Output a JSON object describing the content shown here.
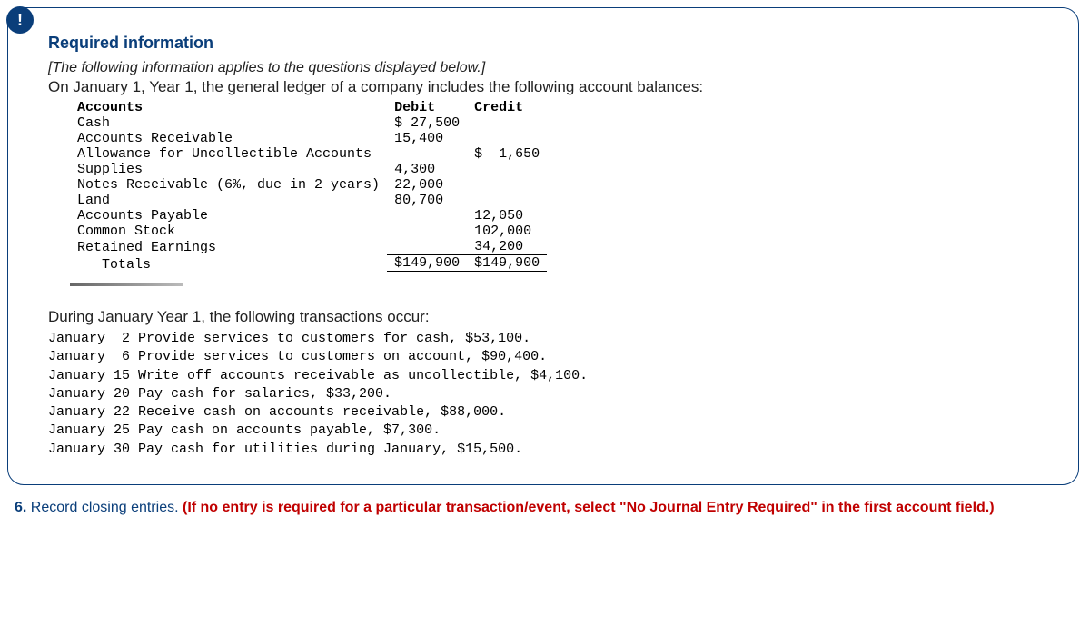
{
  "badge": "!",
  "title": "Required information",
  "italic_note": "[The following information applies to the questions displayed below.]",
  "lead": "On January 1, Year 1, the general ledger of a company includes the following account balances:",
  "ledger": {
    "headers": {
      "c0": "Accounts",
      "c1": "Debit",
      "c2": "Credit"
    },
    "rows": [
      {
        "acct": "Cash",
        "debit": "$ 27,500",
        "credit": ""
      },
      {
        "acct": "Accounts Receivable",
        "debit": "15,400",
        "credit": ""
      },
      {
        "acct": "Allowance for Uncollectible Accounts",
        "debit": "",
        "credit": "$  1,650"
      },
      {
        "acct": "Supplies",
        "debit": "4,300",
        "credit": ""
      },
      {
        "acct": "Notes Receivable (6%, due in 2 years)",
        "debit": "22,000",
        "credit": ""
      },
      {
        "acct": "Land",
        "debit": "80,700",
        "credit": ""
      },
      {
        "acct": "Accounts Payable",
        "debit": "",
        "credit": "12,050"
      },
      {
        "acct": "Common Stock",
        "debit": "",
        "credit": "102,000"
      },
      {
        "acct": "Retained Earnings",
        "debit": "",
        "credit": "34,200"
      }
    ],
    "totals": {
      "label": "   Totals",
      "debit": "$149,900",
      "credit": "$149,900"
    }
  },
  "trans_lead": "During January Year 1, the following transactions occur:",
  "transactions": [
    "January  2 Provide services to customers for cash, $53,100.",
    "January  6 Provide services to customers on account, $90,400.",
    "January 15 Write off accounts receivable as uncollectible, $4,100.",
    "January 20 Pay cash for salaries, $33,200.",
    "January 22 Receive cash on accounts receivable, $88,000.",
    "January 25 Pay cash on accounts payable, $7,300.",
    "January 30 Pay cash for utilities during January, $15,500."
  ],
  "q6": {
    "num": "6.",
    "text": " Record closing entries. ",
    "bold": "(If no entry is required for a particular transaction/event, select \"No Journal Entry Required\" in the first account field.)"
  }
}
